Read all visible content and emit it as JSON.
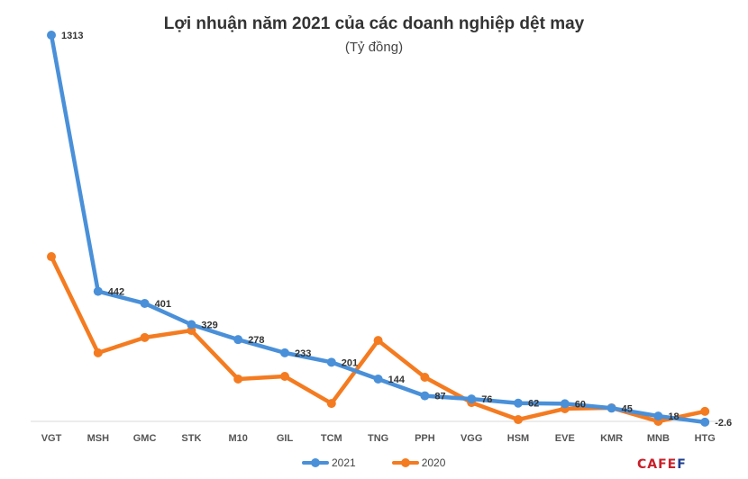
{
  "chart_data": {
    "type": "line",
    "title": "Lợi nhuận năm 2021 của các doanh nghiệp dệt may",
    "subtitle": "(Tỷ đồng)",
    "xlabel": "",
    "ylabel": "",
    "ylim": [
      -5,
      1313
    ],
    "grid": false,
    "legend": "bottom",
    "categories": [
      "VGT",
      "MSH",
      "GMC",
      "STK",
      "M10",
      "GIL",
      "TCM",
      "TNG",
      "PPH",
      "VGG",
      "HSM",
      "EVE",
      "KMR",
      "MNB",
      "HTG"
    ],
    "series": [
      {
        "name": "2021",
        "color": "#4a90d9",
        "values": [
          1313,
          442,
          401,
          329,
          278,
          233,
          201,
          144,
          87,
          76,
          62,
          60,
          45,
          18,
          -2.6
        ],
        "labels": [
          "1313",
          "442",
          "401",
          "329",
          "278",
          "233",
          "201",
          "144",
          "87",
          "76",
          "62",
          "60",
          "45",
          "18",
          "-2.6"
        ]
      },
      {
        "name": "2020",
        "color": "#f47b20",
        "values": [
          560,
          233,
          285,
          309,
          144,
          153,
          61,
          275,
          150,
          64,
          6,
          43,
          46,
          0,
          34
        ]
      }
    ]
  },
  "logo": {
    "part1": "CAFE",
    "part2": "F"
  }
}
